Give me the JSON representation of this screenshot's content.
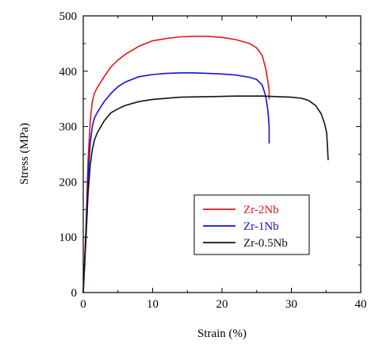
{
  "chart_data": {
    "type": "line",
    "title": "",
    "xlabel": "Strain (%)",
    "ylabel": "Stress (MPa)",
    "xlim": [
      0,
      40
    ],
    "ylim": [
      0,
      500
    ],
    "xticks": [
      0,
      10,
      20,
      30,
      40
    ],
    "yticks": [
      0,
      100,
      200,
      300,
      400,
      500
    ],
    "grid": false,
    "legend_position": "lower-right",
    "series": [
      {
        "name": "Zr-2Nb",
        "color": "#e8141a",
        "x": [
          0,
          0.4,
          0.7,
          1.0,
          1.3,
          1.6,
          2,
          3,
          4,
          5,
          6,
          8,
          10,
          12,
          14,
          16,
          18,
          20,
          22,
          24,
          25,
          25.8,
          26.3,
          26.6,
          26.8,
          26.8
        ],
        "y": [
          0,
          120,
          240,
          310,
          345,
          360,
          370,
          390,
          408,
          420,
          430,
          445,
          455,
          459,
          462,
          463,
          463,
          461,
          457,
          450,
          442,
          428,
          405,
          382,
          365,
          350
        ]
      },
      {
        "name": "Zr-1Nb",
        "color": "#1010e0",
        "x": [
          0,
          0.4,
          0.7,
          1.0,
          1.3,
          1.6,
          2,
          3,
          4,
          5,
          6,
          8,
          10,
          12,
          14,
          16,
          18,
          20,
          22,
          24,
          25,
          25.8,
          26.3,
          26.6,
          26.8,
          26.8
        ],
        "y": [
          0,
          110,
          210,
          270,
          300,
          315,
          325,
          345,
          360,
          372,
          380,
          390,
          394,
          396,
          397,
          397,
          396,
          395,
          393,
          389,
          385,
          375,
          355,
          330,
          300,
          270
        ]
      },
      {
        "name": "Zr-0.5Nb",
        "color": "#111111",
        "x": [
          0,
          0.4,
          0.7,
          1.0,
          1.3,
          1.6,
          2,
          3,
          4,
          5,
          6,
          8,
          10,
          14,
          18,
          22,
          26,
          28,
          30,
          31.5,
          32.5,
          33.5,
          34.3,
          34.8,
          35.1,
          35.2,
          35.3
        ],
        "y": [
          0,
          100,
          180,
          230,
          258,
          275,
          288,
          310,
          325,
          332,
          338,
          345,
          349,
          353,
          354,
          355,
          355,
          354,
          353,
          351,
          347,
          338,
          323,
          305,
          288,
          265,
          240
        ]
      }
    ]
  }
}
